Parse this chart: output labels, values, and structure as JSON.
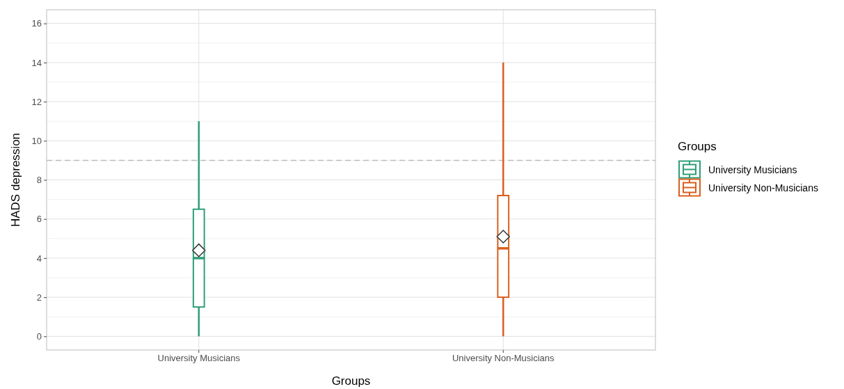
{
  "chart_data": {
    "type": "box",
    "xlabel": "Groups",
    "ylabel": "HADS depression",
    "legend_title": "Groups",
    "legend": "right",
    "grid": true,
    "categories": [
      "University Musicians",
      "University Non-Musicians"
    ],
    "ylim": [
      -0.7,
      16.7
    ],
    "yticks": [
      0,
      2,
      4,
      6,
      8,
      10,
      12,
      14,
      16
    ],
    "series": [
      {
        "name": "University Musicians",
        "color": "#2e9e7a",
        "boxes": [
          {
            "low": 0,
            "q1": 1.5,
            "median": 4,
            "q3": 6.5,
            "high": 11,
            "mean": 4.4
          },
          null
        ]
      },
      {
        "name": "University Non-Musicians",
        "color": "#d95f1e",
        "boxes": [
          null,
          {
            "low": 0,
            "q1": 2,
            "median": 4.5,
            "q3": 7.2,
            "high": 14,
            "mean": 5.1
          }
        ]
      }
    ],
    "ref_lines": [
      {
        "axis": "y",
        "value": 9,
        "color": "#bbbbbb",
        "line_style": "dashed"
      }
    ]
  }
}
